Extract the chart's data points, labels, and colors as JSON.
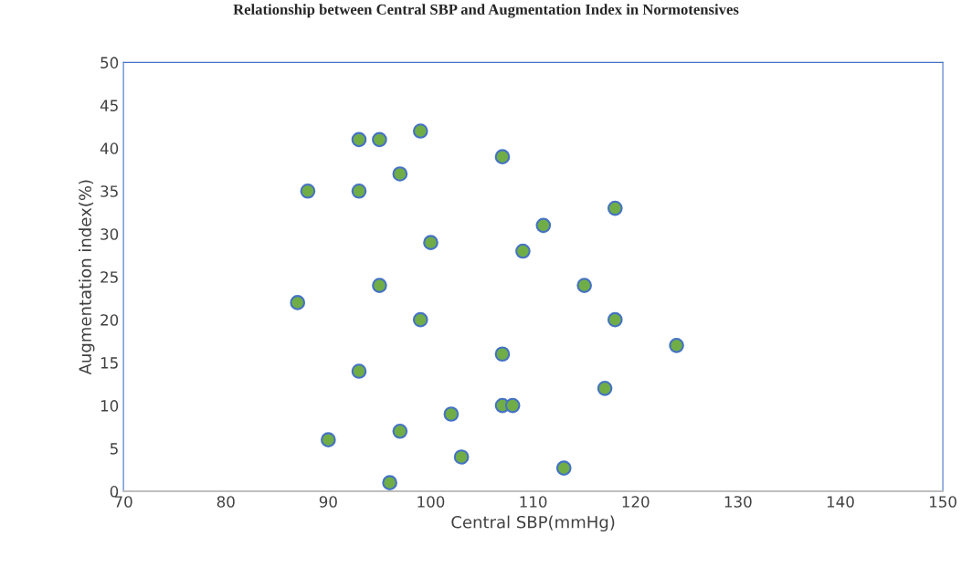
{
  "chart_data": {
    "type": "scatter",
    "title": "Relationship between Central SBP and Augmentation Index in Normotensives",
    "xlabel": "Central SBP(mmHg)",
    "ylabel": "Augmentation index(%)",
    "series": [
      {
        "color": "#70ad47",
        "x": [
          87,
          88,
          90,
          93,
          93,
          93,
          95,
          95,
          96,
          97,
          97,
          99,
          99,
          100,
          102,
          103,
          107,
          107,
          107,
          108,
          109,
          111,
          113,
          115,
          117,
          118,
          118,
          124
        ],
        "values": [
          22,
          35,
          6,
          41,
          35,
          14,
          41,
          24,
          1,
          37,
          7,
          42,
          20,
          29,
          9,
          4,
          39,
          16,
          10,
          10,
          28,
          31,
          2.7,
          24,
          12,
          33,
          20,
          17
        ]
      }
    ],
    "marker": "circle",
    "xlim": [
      70,
      150
    ],
    "xticks": [
      70,
      80,
      90,
      100,
      110,
      120,
      130,
      140,
      150
    ],
    "ylim": [
      0,
      50
    ],
    "yticks": [
      0,
      5,
      10,
      15,
      20,
      25,
      30,
      35,
      40,
      45,
      50
    ],
    "grid": false,
    "legend": false
  }
}
